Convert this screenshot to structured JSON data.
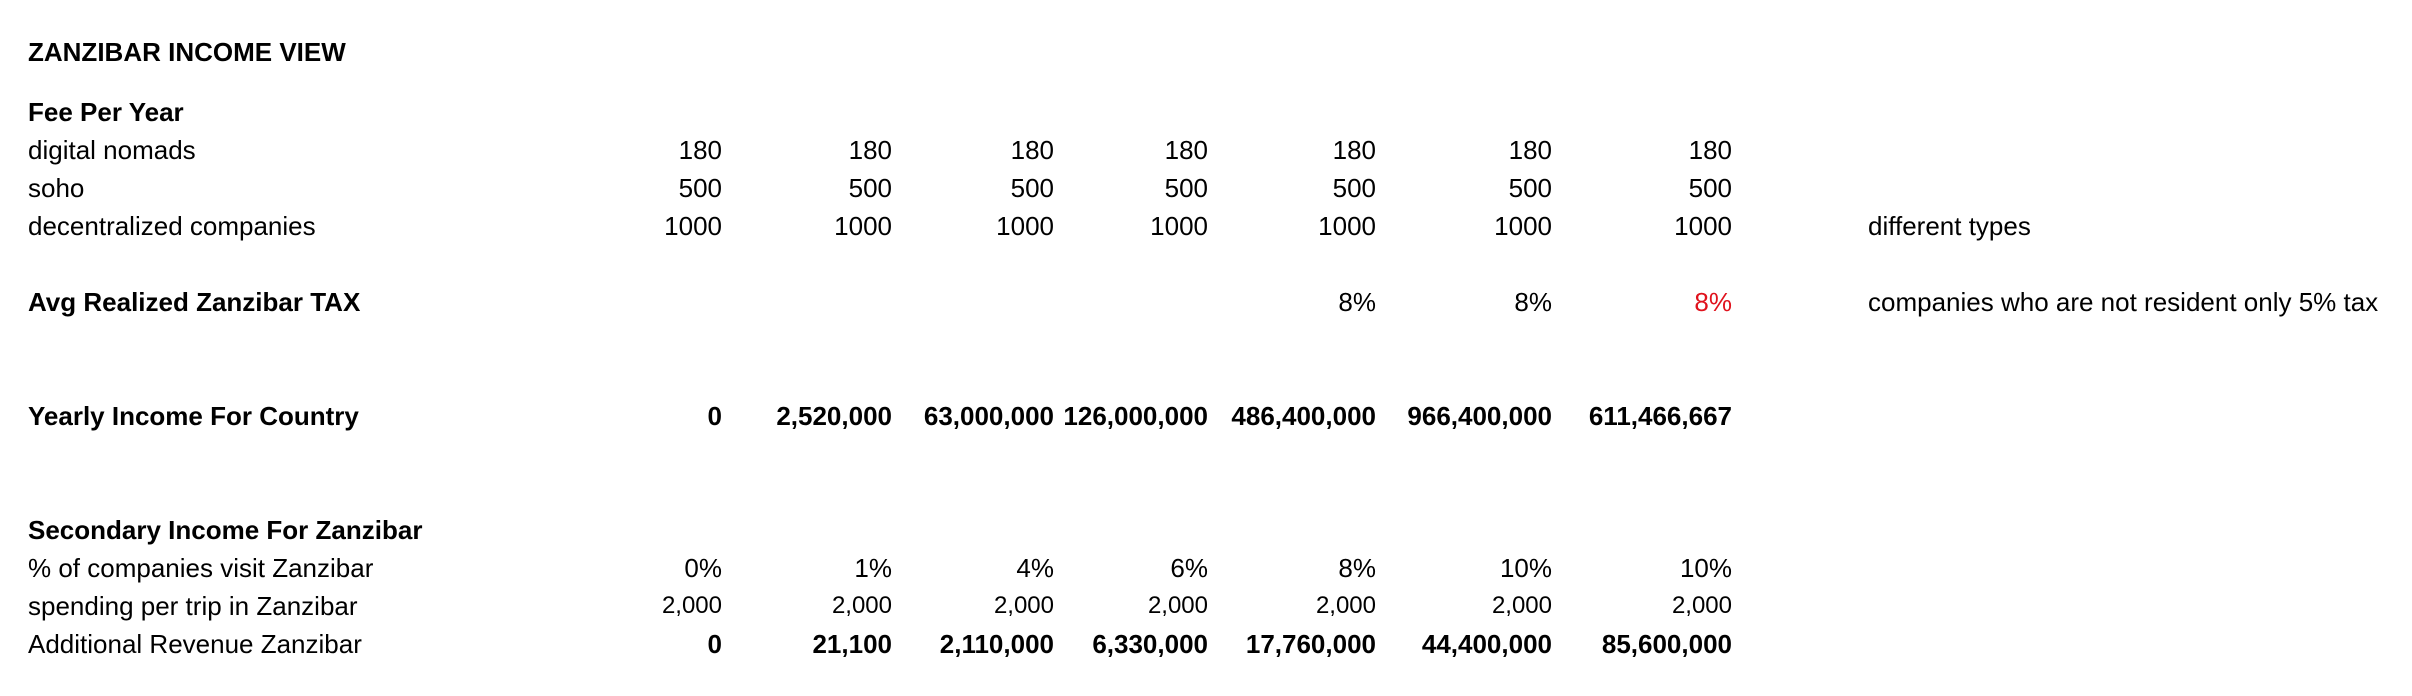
{
  "title": "ZANZIBAR INCOME VIEW",
  "fee_section": {
    "heading": "Fee Per Year",
    "rows": [
      {
        "label": "digital nomads",
        "values": [
          "180",
          "180",
          "180",
          "180",
          "180",
          "180",
          "180"
        ],
        "note": ""
      },
      {
        "label": "soho",
        "values": [
          "500",
          "500",
          "500",
          "500",
          "500",
          "500",
          "500"
        ],
        "note": ""
      },
      {
        "label": "decentralized companies",
        "values": [
          "1000",
          "1000",
          "1000",
          "1000",
          "1000",
          "1000",
          "1000"
        ],
        "note": "different types"
      }
    ]
  },
  "tax": {
    "label": "Avg Realized Zanzibar TAX",
    "values": [
      "",
      "",
      "",
      "",
      "8%",
      "8%",
      "8%"
    ],
    "highlight_color": "#e0121d",
    "note": "companies who are not resident only 5% tax"
  },
  "yearly_income": {
    "label": "Yearly Income For Country",
    "values": [
      "0",
      "2,520,000",
      "63,000,000",
      "126,000,000",
      "486,400,000",
      "966,400,000",
      "611,466,667"
    ]
  },
  "secondary": {
    "heading": "Secondary Income For Zanzibar",
    "visit_pct": {
      "label": "% of companies visit Zanzibar",
      "values": [
        "0%",
        "1%",
        "4%",
        "6%",
        "8%",
        "10%",
        "10%"
      ]
    },
    "spending": {
      "label": "spending per trip in Zanzibar",
      "values": [
        "2,000",
        "2,000",
        "2,000",
        "2,000",
        "2,000",
        "2,000",
        "2,000"
      ]
    },
    "additional_revenue": {
      "label": "Additional Revenue Zanzibar",
      "values": [
        "0",
        "21,100",
        "2,110,000",
        "6,330,000",
        "17,760,000",
        "44,400,000",
        "85,600,000"
      ]
    }
  }
}
